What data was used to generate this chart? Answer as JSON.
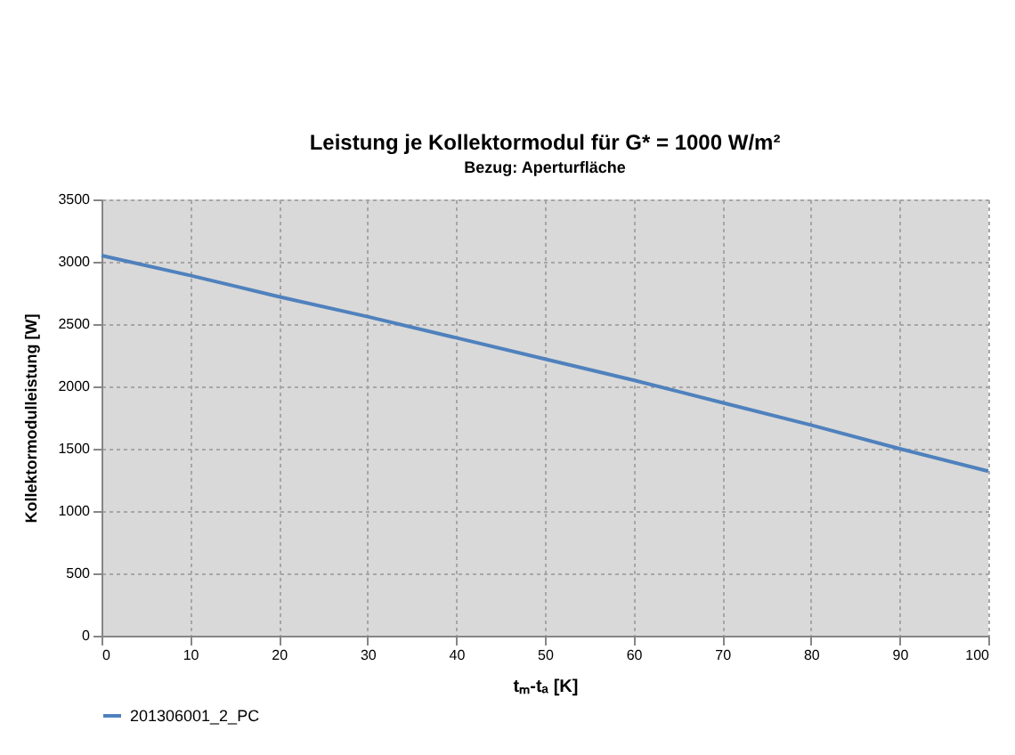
{
  "chart_data": {
    "type": "line",
    "title": "Leistung je Kollektormodul für G* = 1000 W/m²",
    "subtitle": "Bezug: Aperturfläche",
    "xlabel": "tₘ-tₐ [K]",
    "ylabel": "Kollektormodulleistung [W]",
    "x": [
      0,
      10,
      20,
      30,
      40,
      50,
      60,
      70,
      80,
      90,
      100
    ],
    "series": [
      {
        "name": "201306001_2_PC",
        "color": "#4f81bd",
        "values": [
          3050,
          2890,
          2720,
          2560,
          2390,
          2220,
          2050,
          1870,
          1690,
          1500,
          1320
        ]
      }
    ],
    "xlim": [
      0,
      100
    ],
    "xticks": [
      0,
      10,
      20,
      30,
      40,
      50,
      60,
      70,
      80,
      90,
      100
    ],
    "ylim": [
      0,
      3500
    ],
    "yticks": [
      0,
      500,
      1000,
      1500,
      2000,
      2500,
      3000,
      3500
    ],
    "grid": true,
    "legend": "bottom",
    "marker": "none",
    "line_style": "solid"
  }
}
